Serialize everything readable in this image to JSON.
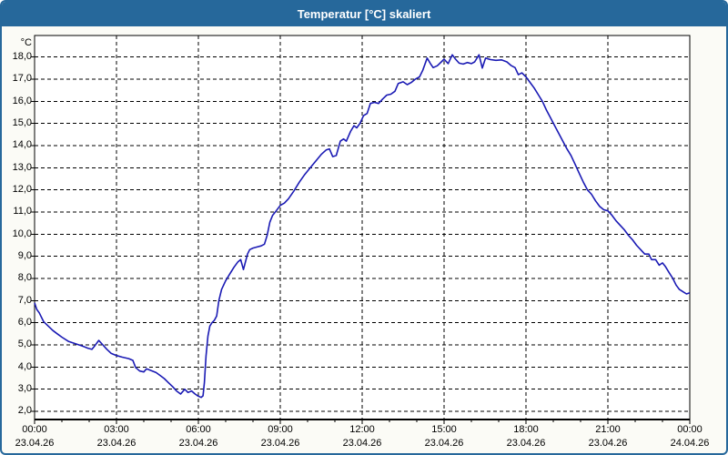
{
  "window": {
    "title": "Temperatur [°C] skaliert"
  },
  "colors": {
    "titlebar": "#26689B",
    "window_border": "#26689B",
    "body_bg": "#FBFBF6",
    "plot_bg": "#FFFFFF",
    "grid": "#000000",
    "text": "#000000",
    "line": "#1A1AB4"
  },
  "chart_data": {
    "type": "line",
    "title": "Temperatur [°C] skaliert",
    "ylabel": "°C",
    "xlabel": "",
    "grid": true,
    "legend": "none",
    "ylim": [
      1.63,
      18.97
    ],
    "xlim_hours": [
      0,
      24
    ],
    "y_ticks": [
      {
        "value": 2,
        "label": "2,0"
      },
      {
        "value": 3,
        "label": "3,0"
      },
      {
        "value": 4,
        "label": "4,0"
      },
      {
        "value": 5,
        "label": "5,0"
      },
      {
        "value": 6,
        "label": "6,0"
      },
      {
        "value": 7,
        "label": "7,0"
      },
      {
        "value": 8,
        "label": "8,0"
      },
      {
        "value": 9,
        "label": "9,0"
      },
      {
        "value": 10,
        "label": "10,0"
      },
      {
        "value": 11,
        "label": "11,0"
      },
      {
        "value": 12,
        "label": "12,0"
      },
      {
        "value": 13,
        "label": "13,0"
      },
      {
        "value": 14,
        "label": "14,0"
      },
      {
        "value": 15,
        "label": "15,0"
      },
      {
        "value": 16,
        "label": "16,0"
      },
      {
        "value": 17,
        "label": "17,0"
      },
      {
        "value": 18,
        "label": "18,0"
      }
    ],
    "x_ticks": [
      {
        "hour": 0,
        "time": "00:00",
        "date": "23.04.26"
      },
      {
        "hour": 3,
        "time": "03:00",
        "date": "23.04.26"
      },
      {
        "hour": 6,
        "time": "06:00",
        "date": "23.04.26"
      },
      {
        "hour": 9,
        "time": "09:00",
        "date": "23.04.26"
      },
      {
        "hour": 12,
        "time": "12:00",
        "date": "23.04.26"
      },
      {
        "hour": 15,
        "time": "15:00",
        "date": "23.04.26"
      },
      {
        "hour": 18,
        "time": "18:00",
        "date": "23.04.26"
      },
      {
        "hour": 21,
        "time": "21:00",
        "date": "23.04.26"
      },
      {
        "hour": 24,
        "time": "00:00",
        "date": "24.04.26"
      }
    ],
    "minor_x_tick_every_hours": 1,
    "series": [
      {
        "name": "Temperatur",
        "color": "#1A1AB4",
        "points": [
          [
            0,
            6.9
          ],
          [
            0.08,
            6.6
          ],
          [
            0.17,
            6.45
          ],
          [
            0.33,
            6.05
          ],
          [
            0.5,
            5.85
          ],
          [
            0.67,
            5.65
          ],
          [
            0.83,
            5.5
          ],
          [
            1.0,
            5.35
          ],
          [
            1.25,
            5.15
          ],
          [
            1.5,
            5.05
          ],
          [
            1.75,
            4.95
          ],
          [
            1.95,
            4.85
          ],
          [
            2.1,
            4.8
          ],
          [
            2.2,
            4.95
          ],
          [
            2.35,
            5.2
          ],
          [
            2.5,
            5.0
          ],
          [
            2.65,
            4.8
          ],
          [
            2.8,
            4.62
          ],
          [
            3.0,
            4.52
          ],
          [
            3.2,
            4.45
          ],
          [
            3.45,
            4.38
          ],
          [
            3.6,
            4.3
          ],
          [
            3.7,
            3.98
          ],
          [
            3.85,
            3.82
          ],
          [
            4.0,
            3.78
          ],
          [
            4.1,
            3.92
          ],
          [
            4.25,
            3.85
          ],
          [
            4.45,
            3.75
          ],
          [
            4.6,
            3.62
          ],
          [
            4.75,
            3.48
          ],
          [
            4.9,
            3.3
          ],
          [
            5.05,
            3.12
          ],
          [
            5.2,
            2.92
          ],
          [
            5.35,
            2.78
          ],
          [
            5.5,
            3.0
          ],
          [
            5.62,
            2.85
          ],
          [
            5.75,
            2.92
          ],
          [
            5.88,
            2.78
          ],
          [
            6.0,
            2.68
          ],
          [
            6.1,
            2.63
          ],
          [
            6.17,
            2.7
          ],
          [
            6.22,
            3.3
          ],
          [
            6.28,
            4.5
          ],
          [
            6.35,
            5.4
          ],
          [
            6.42,
            5.85
          ],
          [
            6.5,
            6.0
          ],
          [
            6.58,
            6.1
          ],
          [
            6.67,
            6.3
          ],
          [
            6.75,
            7.0
          ],
          [
            6.85,
            7.5
          ],
          [
            7.0,
            7.9
          ],
          [
            7.15,
            8.2
          ],
          [
            7.3,
            8.5
          ],
          [
            7.45,
            8.75
          ],
          [
            7.55,
            8.85
          ],
          [
            7.65,
            8.4
          ],
          [
            7.8,
            9.1
          ],
          [
            7.88,
            9.3
          ],
          [
            8.0,
            9.37
          ],
          [
            8.15,
            9.42
          ],
          [
            8.3,
            9.47
          ],
          [
            8.42,
            9.55
          ],
          [
            8.52,
            9.95
          ],
          [
            8.62,
            10.55
          ],
          [
            8.72,
            10.85
          ],
          [
            8.85,
            11.05
          ],
          [
            9.0,
            11.3
          ],
          [
            9.15,
            11.4
          ],
          [
            9.3,
            11.6
          ],
          [
            9.5,
            11.95
          ],
          [
            9.7,
            12.35
          ],
          [
            9.9,
            12.7
          ],
          [
            10.1,
            13.0
          ],
          [
            10.3,
            13.3
          ],
          [
            10.5,
            13.6
          ],
          [
            10.68,
            13.8
          ],
          [
            10.8,
            13.85
          ],
          [
            10.92,
            13.5
          ],
          [
            11.05,
            13.55
          ],
          [
            11.2,
            14.2
          ],
          [
            11.32,
            14.3
          ],
          [
            11.42,
            14.2
          ],
          [
            11.58,
            14.65
          ],
          [
            11.7,
            14.9
          ],
          [
            11.8,
            14.8
          ],
          [
            11.92,
            15.0
          ],
          [
            12.05,
            15.35
          ],
          [
            12.18,
            15.45
          ],
          [
            12.3,
            15.9
          ],
          [
            12.45,
            15.95
          ],
          [
            12.6,
            15.9
          ],
          [
            12.75,
            16.1
          ],
          [
            12.9,
            16.28
          ],
          [
            13.05,
            16.32
          ],
          [
            13.2,
            16.45
          ],
          [
            13.32,
            16.8
          ],
          [
            13.5,
            16.88
          ],
          [
            13.65,
            16.75
          ],
          [
            13.8,
            16.85
          ],
          [
            13.95,
            17.0
          ],
          [
            14.1,
            17.1
          ],
          [
            14.22,
            17.4
          ],
          [
            14.38,
            17.95
          ],
          [
            14.5,
            17.7
          ],
          [
            14.6,
            17.52
          ],
          [
            14.75,
            17.6
          ],
          [
            14.9,
            17.78
          ],
          [
            15.0,
            17.9
          ],
          [
            15.15,
            17.7
          ],
          [
            15.3,
            18.1
          ],
          [
            15.42,
            17.9
          ],
          [
            15.55,
            17.72
          ],
          [
            15.7,
            17.68
          ],
          [
            15.85,
            17.75
          ],
          [
            16.0,
            17.7
          ],
          [
            16.12,
            17.78
          ],
          [
            16.28,
            18.1
          ],
          [
            16.4,
            17.5
          ],
          [
            16.52,
            17.95
          ],
          [
            16.7,
            17.88
          ],
          [
            16.9,
            17.85
          ],
          [
            17.1,
            17.87
          ],
          [
            17.3,
            17.78
          ],
          [
            17.45,
            17.62
          ],
          [
            17.6,
            17.52
          ],
          [
            17.72,
            17.2
          ],
          [
            17.85,
            17.28
          ],
          [
            18.0,
            17.1
          ],
          [
            18.15,
            16.85
          ],
          [
            18.3,
            16.6
          ],
          [
            18.45,
            16.3
          ],
          [
            18.6,
            16.0
          ],
          [
            18.75,
            15.6
          ],
          [
            18.9,
            15.25
          ],
          [
            19.05,
            14.9
          ],
          [
            19.2,
            14.55
          ],
          [
            19.35,
            14.2
          ],
          [
            19.5,
            13.85
          ],
          [
            19.65,
            13.55
          ],
          [
            19.8,
            13.15
          ],
          [
            19.95,
            12.75
          ],
          [
            20.1,
            12.35
          ],
          [
            20.25,
            12.0
          ],
          [
            20.4,
            11.8
          ],
          [
            20.55,
            11.5
          ],
          [
            20.7,
            11.25
          ],
          [
            20.85,
            11.1
          ],
          [
            21.0,
            11.05
          ],
          [
            21.15,
            10.85
          ],
          [
            21.3,
            10.6
          ],
          [
            21.45,
            10.4
          ],
          [
            21.6,
            10.2
          ],
          [
            21.75,
            9.95
          ],
          [
            21.9,
            9.75
          ],
          [
            22.05,
            9.5
          ],
          [
            22.2,
            9.3
          ],
          [
            22.35,
            9.1
          ],
          [
            22.5,
            9.1
          ],
          [
            22.6,
            8.85
          ],
          [
            22.75,
            8.85
          ],
          [
            22.88,
            8.6
          ],
          [
            23.0,
            8.7
          ],
          [
            23.1,
            8.55
          ],
          [
            23.25,
            8.25
          ],
          [
            23.38,
            8.0
          ],
          [
            23.5,
            7.7
          ],
          [
            23.62,
            7.5
          ],
          [
            23.75,
            7.4
          ],
          [
            23.88,
            7.3
          ],
          [
            24.0,
            7.35
          ]
        ]
      }
    ]
  }
}
